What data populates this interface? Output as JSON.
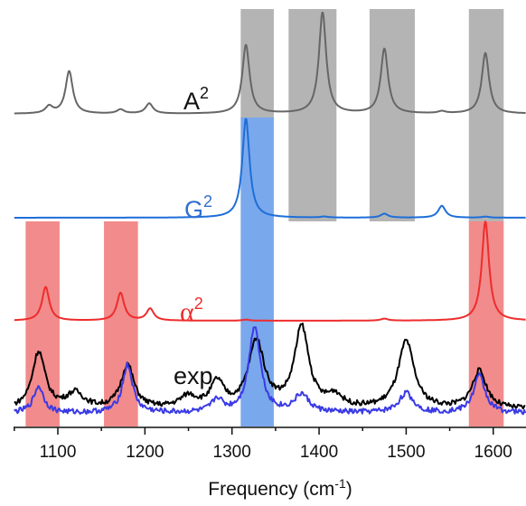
{
  "chart_data": {
    "type": "line",
    "xlabel": "Frequency (cm",
    "xlabel_sup": "-1",
    "xlabel_close": ")",
    "xlim": [
      1050,
      1650
    ],
    "xticks": [
      1100,
      1200,
      1300,
      1400,
      1500,
      1600
    ],
    "grid": false,
    "gray_bands": [
      [
        1310,
        1348
      ],
      [
        1365,
        1420
      ],
      [
        1458,
        1510
      ],
      [
        1572,
        1612
      ]
    ],
    "blue_bands": [
      [
        1310,
        1348
      ]
    ],
    "red_bands": [
      [
        1063,
        1102
      ],
      [
        1153,
        1192
      ],
      [
        1572,
        1612
      ]
    ],
    "series": [
      {
        "name": "A",
        "name_sup": "2",
        "color": "#666666",
        "baseline": 0,
        "peaks": [
          {
            "x": 1090,
            "h": 0.07,
            "w": 5
          },
          {
            "x": 1113,
            "h": 0.42,
            "w": 5
          },
          {
            "x": 1172,
            "h": 0.04,
            "w": 5
          },
          {
            "x": 1205,
            "h": 0.1,
            "w": 5
          },
          {
            "x": 1316,
            "h": 0.68,
            "w": 5
          },
          {
            "x": 1404,
            "h": 1.0,
            "w": 5
          },
          {
            "x": 1475,
            "h": 0.64,
            "w": 5
          },
          {
            "x": 1541,
            "h": 0.02,
            "w": 5
          },
          {
            "x": 1591,
            "h": 0.6,
            "w": 5
          }
        ]
      },
      {
        "name": "G",
        "name_sup": "2",
        "color": "#1e6ed8",
        "baseline": 0,
        "peaks": [
          {
            "x": 1316,
            "h": 1.0,
            "w": 5
          },
          {
            "x": 1406,
            "h": 0.01,
            "w": 5
          },
          {
            "x": 1475,
            "h": 0.04,
            "w": 5
          },
          {
            "x": 1541,
            "h": 0.12,
            "w": 5
          },
          {
            "x": 1591,
            "h": 0.01,
            "w": 5
          }
        ]
      },
      {
        "name": "α",
        "name_sup": "2",
        "color": "#ee2c2c",
        "baseline": 0,
        "peaks": [
          {
            "x": 1086,
            "h": 0.34,
            "w": 5
          },
          {
            "x": 1172,
            "h": 0.28,
            "w": 5
          },
          {
            "x": 1206,
            "h": 0.12,
            "w": 5
          },
          {
            "x": 1316,
            "h": 0.01,
            "w": 5
          },
          {
            "x": 1475,
            "h": 0.02,
            "w": 5
          },
          {
            "x": 1591,
            "h": 1.0,
            "w": 5
          }
        ]
      },
      {
        "name": "exp",
        "color": "#000000",
        "baseline": 0,
        "peaks": [
          {
            "x": 1078,
            "h": 0.68,
            "w": 9
          },
          {
            "x": 1120,
            "h": 0.18,
            "w": 12
          },
          {
            "x": 1180,
            "h": 0.52,
            "w": 9
          },
          {
            "x": 1250,
            "h": 0.14,
            "w": 12
          },
          {
            "x": 1283,
            "h": 0.3,
            "w": 9
          },
          {
            "x": 1328,
            "h": 0.8,
            "w": 11
          },
          {
            "x": 1380,
            "h": 0.96,
            "w": 10
          },
          {
            "x": 1418,
            "h": 0.14,
            "w": 10
          },
          {
            "x": 1500,
            "h": 0.8,
            "w": 11
          },
          {
            "x": 1584,
            "h": 0.45,
            "w": 10
          }
        ]
      },
      {
        "name": "",
        "color": "#3a3ae6",
        "baseline": 0,
        "peaks": [
          {
            "x": 1078,
            "h": 0.3,
            "w": 7
          },
          {
            "x": 1180,
            "h": 0.54,
            "w": 7
          },
          {
            "x": 1283,
            "h": 0.15,
            "w": 7
          },
          {
            "x": 1326,
            "h": 0.98,
            "w": 8
          },
          {
            "x": 1380,
            "h": 0.2,
            "w": 10
          },
          {
            "x": 1500,
            "h": 0.22,
            "w": 10
          },
          {
            "x": 1584,
            "h": 0.42,
            "w": 8
          }
        ]
      }
    ],
    "label_exp": "exp"
  },
  "colors": {
    "gray_band": "#b4b4b4",
    "blue_band": "#7aa8ec",
    "red_band": "#f28b8b"
  }
}
